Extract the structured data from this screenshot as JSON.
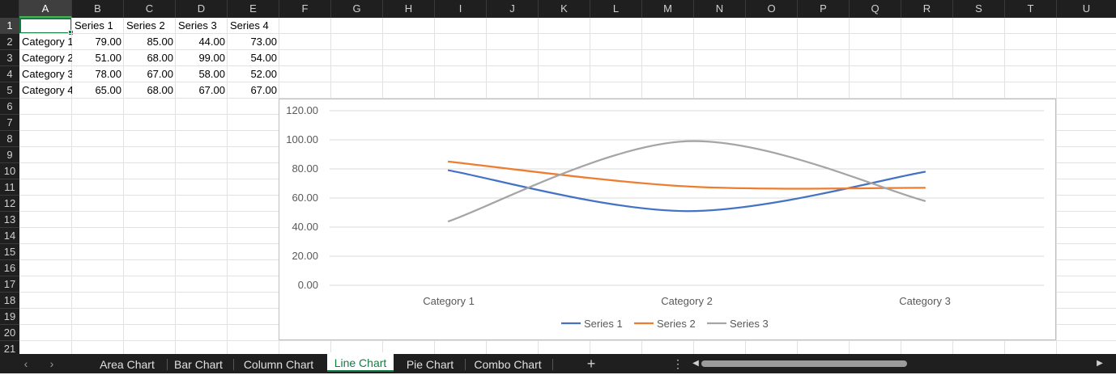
{
  "columns": [
    "A",
    "B",
    "C",
    "D",
    "E",
    "F",
    "G",
    "H",
    "I",
    "J",
    "K",
    "L",
    "M",
    "N",
    "O",
    "P",
    "Q",
    "R",
    "S",
    "T",
    "U"
  ],
  "rows": [
    "1",
    "2",
    "3",
    "4",
    "5",
    "6",
    "7",
    "8",
    "9",
    "10",
    "11",
    "12",
    "13",
    "14",
    "15",
    "16",
    "17",
    "18",
    "19",
    "20",
    "21"
  ],
  "selected_cell": "A1",
  "sheet": {
    "header": [
      "",
      "Series 1",
      "Series 2",
      "Series 3",
      "Series 4"
    ],
    "rows": [
      [
        "Category 1",
        "79.00",
        "85.00",
        "44.00",
        "73.00"
      ],
      [
        "Category 2",
        "51.00",
        "68.00",
        "99.00",
        "54.00"
      ],
      [
        "Category 3",
        "78.00",
        "67.00",
        "58.00",
        "52.00"
      ],
      [
        "Category 4",
        "65.00",
        "68.00",
        "67.00",
        "67.00"
      ]
    ]
  },
  "chart_data": {
    "type": "line",
    "smoothed": true,
    "categories": [
      "Category 1",
      "Category 2",
      "Category 3"
    ],
    "series": [
      {
        "name": "Series 1",
        "values": [
          79,
          51,
          78
        ],
        "color": "#4472c4"
      },
      {
        "name": "Series 2",
        "values": [
          85,
          68,
          67
        ],
        "color": "#ed7d31"
      },
      {
        "name": "Series 3",
        "values": [
          44,
          99,
          58
        ],
        "color": "#a5a5a5"
      }
    ],
    "yticks": [
      "0.00",
      "20.00",
      "40.00",
      "60.00",
      "80.00",
      "100.00",
      "120.00"
    ],
    "ylim": [
      0,
      120
    ],
    "ystep": 20,
    "grid": true,
    "legend_position": "bottom",
    "title": "",
    "xlabel": "",
    "ylabel": ""
  },
  "tabs": {
    "items": [
      "Area Chart",
      "Bar Chart",
      "Column Chart",
      "Line Chart",
      "Pie Chart",
      "Combo Chart"
    ],
    "active": "Line Chart",
    "nav_prev": "‹",
    "nav_next": "›",
    "add": "+",
    "more": "⋮",
    "scroll_left": "◀",
    "scroll_right": "▶"
  },
  "colors": {
    "accent": "#107c41",
    "header_bg": "#1f1f1f",
    "gridline": "#e1e1e1"
  }
}
